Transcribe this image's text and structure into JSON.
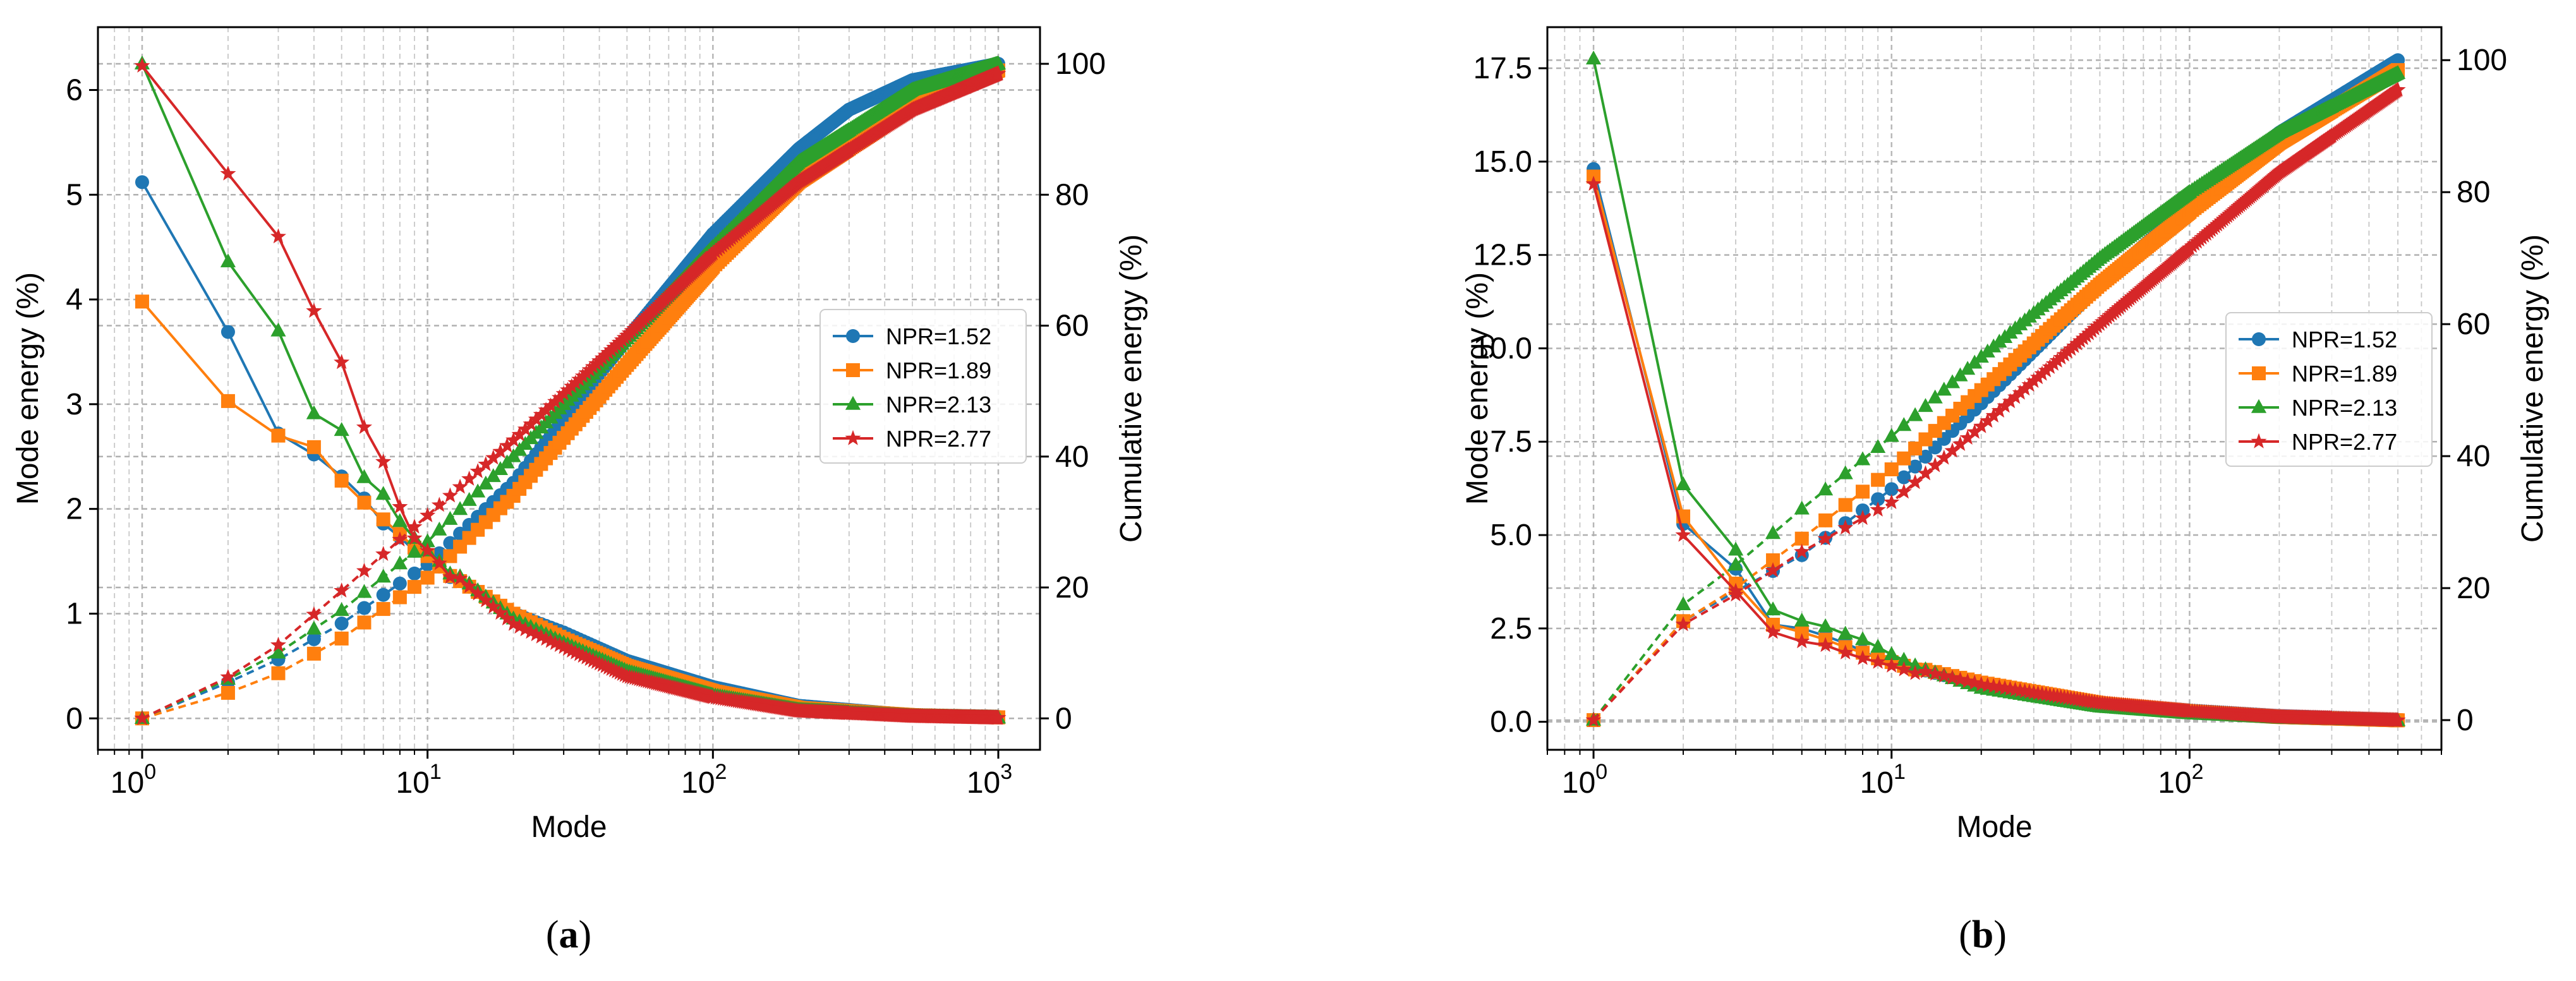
{
  "chart_data": [
    {
      "type": "line",
      "panel": "a",
      "caption": {
        "open": "(",
        "letter": "a",
        "close": ")"
      },
      "xlabel": "Mode",
      "ylabel": "Mode energy (%)",
      "y2label": "Cumulative energy (%)",
      "xscale": "log",
      "xlim": [
        0.7,
        1400
      ],
      "ylim": [
        -0.3,
        6.6
      ],
      "y2lim": [
        -4.8,
        105.6
      ],
      "xticks": [
        {
          "value": 1,
          "exp": "0"
        },
        {
          "value": 10,
          "exp": "1"
        },
        {
          "value": 100,
          "exp": "2"
        },
        {
          "value": 1000,
          "exp": "3"
        }
      ],
      "xtick_base": "10",
      "yticks": [
        0,
        1,
        2,
        3,
        4,
        5,
        6
      ],
      "ytick_labels": [
        "0",
        "1",
        "2",
        "3",
        "4",
        "5",
        "6"
      ],
      "y2ticks": [
        0,
        20,
        40,
        60,
        80,
        100
      ],
      "y2tick_labels": [
        "0",
        "20",
        "40",
        "60",
        "80",
        "100"
      ],
      "n_modes": 1000,
      "grid": true,
      "legend_location": "center-right",
      "series": [
        {
          "name": "NPR=1.52",
          "color": "#1f77b4",
          "marker": "circle",
          "energy_start": [
            5.12,
            3.69,
            2.72,
            2.52,
            2.31,
            2.1,
            1.86,
            1.73,
            1.6,
            1.52,
            1.45,
            1.35
          ],
          "energy_tail": [
            [
              10,
              1.5
            ],
            [
              20,
              1.0
            ],
            [
              30,
              0.82
            ],
            [
              50,
              0.55
            ],
            [
              100,
              0.3
            ],
            [
              200,
              0.12
            ],
            [
              500,
              0.03
            ],
            [
              1000,
              0.01
            ]
          ],
          "cumulative": [
            [
              1,
              0
            ],
            [
              2,
              5.5
            ],
            [
              3,
              9.0
            ],
            [
              5,
              14.5
            ],
            [
              10,
              23.5
            ],
            [
              20,
              36
            ],
            [
              50,
              58
            ],
            [
              100,
              74
            ],
            [
              200,
              87
            ],
            [
              300,
              93
            ],
            [
              500,
              97.5
            ],
            [
              1000,
              100
            ]
          ]
        },
        {
          "name": "NPR=1.89",
          "color": "#ff7f0e",
          "marker": "square",
          "energy_start": [
            3.98,
            3.03,
            2.7,
            2.59,
            2.27,
            2.06,
            1.9,
            1.76,
            1.63,
            1.55,
            1.45,
            1.36
          ],
          "energy_tail": [
            [
              10,
              1.5
            ],
            [
              20,
              1.0
            ],
            [
              30,
              0.76
            ],
            [
              50,
              0.5
            ],
            [
              100,
              0.26
            ],
            [
              200,
              0.1
            ],
            [
              500,
              0.03
            ],
            [
              1000,
              0.01
            ]
          ],
          "cumulative": [
            [
              1,
              0
            ],
            [
              2,
              3.9
            ],
            [
              3,
              6.9
            ],
            [
              5,
              12.2
            ],
            [
              10,
              21.5
            ],
            [
              20,
              34
            ],
            [
              50,
              54
            ],
            [
              100,
              69
            ],
            [
              200,
              82
            ],
            [
              500,
              93.5
            ],
            [
              1000,
              99
            ]
          ]
        },
        {
          "name": "NPR=2.13",
          "color": "#2ca02c",
          "marker": "triangle",
          "energy_start": [
            6.25,
            4.36,
            3.7,
            2.91,
            2.75,
            2.3,
            2.14,
            1.88,
            1.72,
            1.6,
            1.5,
            1.38
          ],
          "energy_tail": [
            [
              10,
              1.6
            ],
            [
              20,
              0.95
            ],
            [
              30,
              0.72
            ],
            [
              50,
              0.45
            ],
            [
              100,
              0.22
            ],
            [
              200,
              0.08
            ],
            [
              500,
              0.02
            ],
            [
              1000,
              0.005
            ]
          ],
          "cumulative": [
            [
              1,
              0
            ],
            [
              2,
              6.0
            ],
            [
              3,
              10.0
            ],
            [
              5,
              16.5
            ],
            [
              10,
              27
            ],
            [
              20,
              40
            ],
            [
              50,
              58
            ],
            [
              100,
              72
            ],
            [
              200,
              85
            ],
            [
              500,
              96
            ],
            [
              1000,
              100
            ]
          ]
        },
        {
          "name": "NPR=2.77",
          "color": "#d62728",
          "marker": "star",
          "energy_start": [
            6.23,
            5.2,
            4.6,
            3.89,
            3.4,
            2.78,
            2.45,
            2.02,
            1.72,
            1.6,
            1.48,
            1.35
          ],
          "energy_tail": [
            [
              10,
              1.6
            ],
            [
              20,
              0.9
            ],
            [
              30,
              0.68
            ],
            [
              50,
              0.4
            ],
            [
              100,
              0.2
            ],
            [
              200,
              0.07
            ],
            [
              500,
              0.02
            ],
            [
              1000,
              0.005
            ]
          ],
          "cumulative": [
            [
              1,
              0
            ],
            [
              2,
              6.3
            ],
            [
              3,
              11.2
            ],
            [
              5,
              19.5
            ],
            [
              10,
              31
            ],
            [
              20,
              42.5
            ],
            [
              50,
              58.5
            ],
            [
              100,
              71
            ],
            [
              200,
              82
            ],
            [
              500,
              93
            ],
            [
              1000,
              98.5
            ]
          ]
        }
      ]
    },
    {
      "type": "line",
      "panel": "b",
      "caption": {
        "open": "(",
        "letter": "b",
        "close": ")"
      },
      "xlabel": "Mode",
      "ylabel": "Mode energy (%)",
      "y2label": "Cumulative energy (%)",
      "xscale": "log",
      "xlim": [
        0.7,
        700
      ],
      "ylim": [
        -0.75,
        18.6
      ],
      "y2lim": [
        -4.5,
        105
      ],
      "xticks": [
        {
          "value": 1,
          "exp": "0"
        },
        {
          "value": 10,
          "exp": "1"
        },
        {
          "value": 100,
          "exp": "2"
        }
      ],
      "xtick_base": "10",
      "yticks": [
        0,
        2.5,
        5,
        7.5,
        10,
        12.5,
        15,
        17.5
      ],
      "ytick_labels": [
        "0.0",
        "2.5",
        "5.0",
        "7.5",
        "10.0",
        "12.5",
        "15.0",
        "17.5"
      ],
      "y2ticks": [
        0,
        20,
        40,
        60,
        80,
        100
      ],
      "y2tick_labels": [
        "0",
        "20",
        "40",
        "60",
        "80",
        "100"
      ],
      "n_modes": 500,
      "grid": true,
      "legend_location": "center-right",
      "series": [
        {
          "name": "NPR=1.52",
          "color": "#1f77b4",
          "marker": "circle",
          "energy_start": [
            14.8,
            5.3,
            4.1,
            2.6,
            2.5,
            2.3,
            2.1,
            1.9,
            1.7,
            1.6,
            1.5,
            1.4
          ],
          "energy_tail": [
            [
              10,
              1.6
            ],
            [
              20,
              1.0
            ],
            [
              50,
              0.5
            ],
            [
              100,
              0.3
            ],
            [
              200,
              0.15
            ],
            [
              500,
              0.05
            ]
          ],
          "cumulative": [
            [
              1,
              0
            ],
            [
              2,
              15
            ],
            [
              3,
              19.5
            ],
            [
              5,
              25
            ],
            [
              10,
              35
            ],
            [
              20,
              48
            ],
            [
              50,
              66
            ],
            [
              100,
              78
            ],
            [
              200,
              89
            ],
            [
              500,
              100
            ]
          ]
        },
        {
          "name": "NPR=1.89",
          "color": "#ff7f0e",
          "marker": "square",
          "energy_start": [
            14.6,
            5.5,
            3.7,
            2.6,
            2.4,
            2.2,
            2.0,
            1.85,
            1.7,
            1.6,
            1.5,
            1.4
          ],
          "energy_tail": [
            [
              10,
              1.6
            ],
            [
              20,
              1.05
            ],
            [
              50,
              0.5
            ],
            [
              100,
              0.28
            ],
            [
              200,
              0.13
            ],
            [
              500,
              0.04
            ]
          ],
          "cumulative": [
            [
              1,
              0
            ],
            [
              2,
              15
            ],
            [
              3,
              20
            ],
            [
              5,
              27.5
            ],
            [
              10,
              38
            ],
            [
              20,
              50
            ],
            [
              50,
              66
            ],
            [
              100,
              77
            ],
            [
              200,
              87.5
            ],
            [
              500,
              98.5
            ]
          ]
        },
        {
          "name": "NPR=2.13",
          "color": "#2ca02c",
          "marker": "triangle",
          "energy_start": [
            17.75,
            6.35,
            4.6,
            3.0,
            2.7,
            2.55,
            2.35,
            2.2,
            2.0,
            1.8,
            1.65,
            1.5
          ],
          "energy_tail": [
            [
              10,
              1.7
            ],
            [
              20,
              0.9
            ],
            [
              50,
              0.4
            ],
            [
              100,
              0.22
            ],
            [
              200,
              0.1
            ],
            [
              500,
              0.03
            ]
          ],
          "cumulative": [
            [
              1,
              0
            ],
            [
              2,
              17.5
            ],
            [
              3,
              23.5
            ],
            [
              5,
              32
            ],
            [
              10,
              43
            ],
            [
              20,
              55
            ],
            [
              50,
              70
            ],
            [
              100,
              80
            ],
            [
              200,
              89
            ],
            [
              500,
              98
            ]
          ]
        },
        {
          "name": "NPR=2.77",
          "color": "#d62728",
          "marker": "star",
          "energy_start": [
            14.4,
            5.0,
            3.5,
            2.4,
            2.15,
            2.05,
            1.85,
            1.7,
            1.6,
            1.5,
            1.4,
            1.3
          ],
          "energy_tail": [
            [
              10,
              1.55
            ],
            [
              20,
              1.0
            ],
            [
              50,
              0.5
            ],
            [
              100,
              0.28
            ],
            [
              200,
              0.13
            ],
            [
              500,
              0.04
            ]
          ],
          "cumulative": [
            [
              1,
              0
            ],
            [
              2,
              14.5
            ],
            [
              3,
              19
            ],
            [
              5,
              25.5
            ],
            [
              10,
              33
            ],
            [
              20,
              44.5
            ],
            [
              50,
              60
            ],
            [
              100,
              71.5
            ],
            [
              200,
              83
            ],
            [
              500,
              95.5
            ]
          ]
        }
      ]
    }
  ]
}
